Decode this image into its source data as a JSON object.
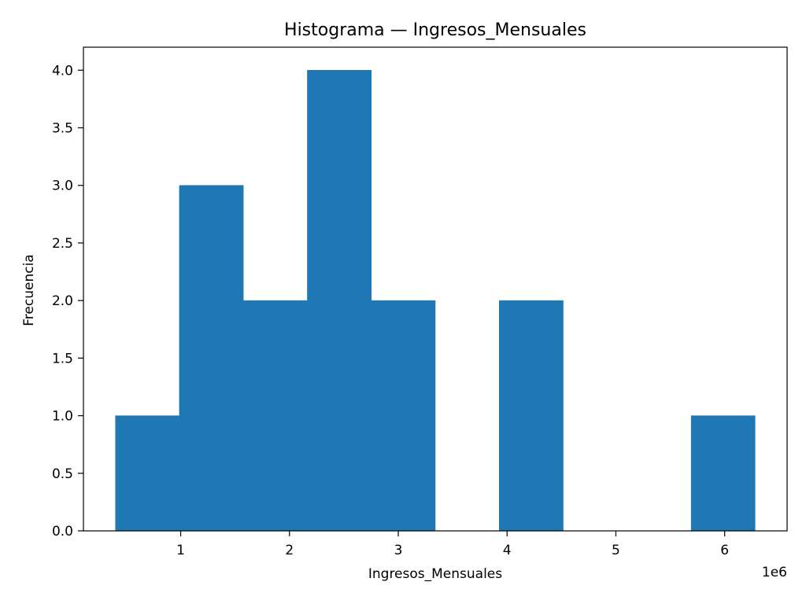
{
  "chart_data": {
    "type": "bar",
    "subtype": "histogram",
    "title": "Histograma — Ingresos_Mensuales",
    "xlabel": "Ingresos_Mensuales",
    "ylabel": "Frecuencia",
    "x_offset_text": "1e6",
    "bins": [
      {
        "start": 400000,
        "end": 988000,
        "count": 1
      },
      {
        "start": 988000,
        "end": 1576000,
        "count": 3
      },
      {
        "start": 1576000,
        "end": 2164000,
        "count": 2
      },
      {
        "start": 2164000,
        "end": 2752000,
        "count": 4
      },
      {
        "start": 2752000,
        "end": 3340000,
        "count": 2
      },
      {
        "start": 3340000,
        "end": 3928000,
        "count": 0
      },
      {
        "start": 3928000,
        "end": 4516000,
        "count": 2
      },
      {
        "start": 4516000,
        "end": 5104000,
        "count": 0
      },
      {
        "start": 5104000,
        "end": 5692000,
        "count": 0
      },
      {
        "start": 5692000,
        "end": 6280000,
        "count": 1
      }
    ],
    "xlim": [
      106000,
      6574000
    ],
    "ylim": [
      0,
      4.2
    ],
    "x_ticks": [
      {
        "value": 1000000,
        "label": "1"
      },
      {
        "value": 2000000,
        "label": "2"
      },
      {
        "value": 3000000,
        "label": "3"
      },
      {
        "value": 4000000,
        "label": "4"
      },
      {
        "value": 5000000,
        "label": "5"
      },
      {
        "value": 6000000,
        "label": "6"
      }
    ],
    "y_ticks": [
      {
        "value": 0.0,
        "label": "0.0"
      },
      {
        "value": 0.5,
        "label": "0.5"
      },
      {
        "value": 1.0,
        "label": "1.0"
      },
      {
        "value": 1.5,
        "label": "1.5"
      },
      {
        "value": 2.0,
        "label": "2.0"
      },
      {
        "value": 2.5,
        "label": "2.5"
      },
      {
        "value": 3.0,
        "label": "3.0"
      },
      {
        "value": 3.5,
        "label": "3.5"
      },
      {
        "value": 4.0,
        "label": "4.0"
      }
    ],
    "bar_color": "#1f77b4",
    "grid": false,
    "legend": "none"
  }
}
